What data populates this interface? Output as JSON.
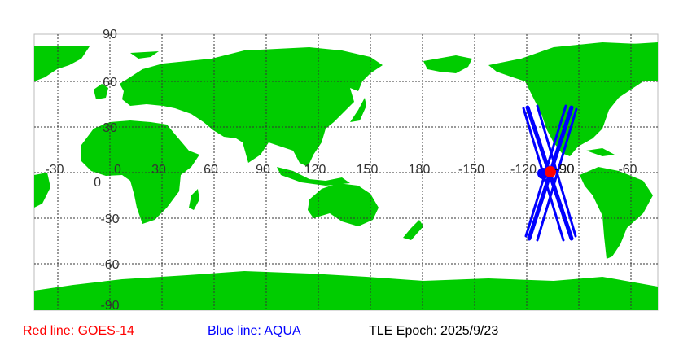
{
  "map": {
    "land_color": "#00cc00",
    "lat_labels": [
      "90",
      "60",
      "30",
      "0",
      "-30",
      "-60",
      "-90"
    ],
    "lon_labels": [
      "-30",
      "0",
      "30",
      "60",
      "90",
      "120",
      "150",
      "180",
      "-150",
      "-120",
      "-90",
      "-60"
    ],
    "satellites": [
      {
        "name": "GOES-14",
        "color": "#ff0000"
      },
      {
        "name": "AQUA",
        "color": "#0000ff"
      }
    ]
  },
  "legend": {
    "red": "Red line: GOES-14",
    "blue": "Blue line: AQUA",
    "epoch": "TLE Epoch: 2025/9/23"
  }
}
